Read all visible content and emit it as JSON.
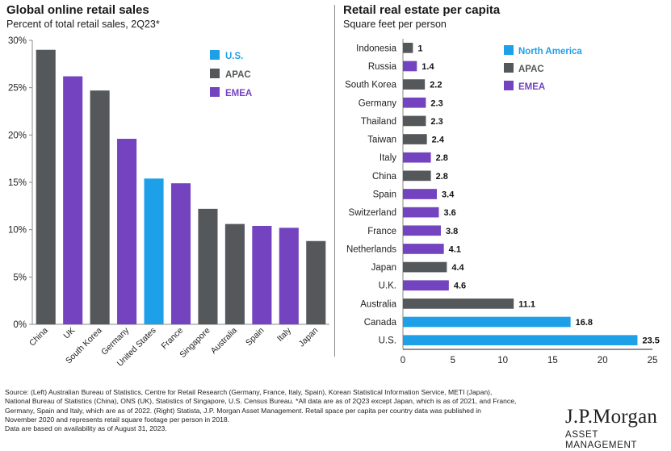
{
  "chart_data": [
    {
      "type": "bar",
      "title": "Global online retail sales",
      "subtitle": "Percent of total retail sales, 2Q23*",
      "categories": [
        "China",
        "UK",
        "South Korea",
        "Germany",
        "United States",
        "France",
        "Singapore",
        "Australia",
        "Spain",
        "Italy",
        "Japan"
      ],
      "values": [
        29.0,
        26.2,
        24.7,
        19.6,
        15.4,
        14.9,
        12.2,
        10.6,
        10.4,
        10.2,
        8.8
      ],
      "groups": [
        "APAC",
        "EMEA",
        "APAC",
        "EMEA",
        "U.S.",
        "EMEA",
        "APAC",
        "APAC",
        "EMEA",
        "EMEA",
        "APAC"
      ],
      "legend": [
        {
          "name": "U.S.",
          "color": "#1ea0e8"
        },
        {
          "name": "APAC",
          "color": "#54585a"
        },
        {
          "name": "EMEA",
          "color": "#7444c0"
        }
      ],
      "ylim": [
        0,
        30
      ],
      "yticks": [
        "0%",
        "5%",
        "10%",
        "15%",
        "20%",
        "25%",
        "30%"
      ],
      "grid": false,
      "legend_position": "top-right"
    },
    {
      "type": "bar",
      "orientation": "horizontal",
      "title": "Retail real estate per capita",
      "subtitle": "Square feet per person",
      "categories": [
        "Indonesia",
        "Russia",
        "South Korea",
        "Germany",
        "Thailand",
        "Taiwan",
        "Italy",
        "China",
        "Spain",
        "Switzerland",
        "France",
        "Netherlands",
        "Japan",
        "U.K.",
        "Australia",
        "Canada",
        "U.S."
      ],
      "values": [
        1,
        1.4,
        2.2,
        2.3,
        2.3,
        2.4,
        2.8,
        2.8,
        3.4,
        3.6,
        3.8,
        4.1,
        4.4,
        4.6,
        11.1,
        16.8,
        23.5
      ],
      "labels": [
        "1",
        "1.4",
        "2.2",
        "2.3",
        "2.3",
        "2.4",
        "2.8",
        "2.8",
        "3.4",
        "3.6",
        "3.8",
        "4.1",
        "4.4",
        "4.6",
        "11.1",
        "16.8",
        "23.5"
      ],
      "groups": [
        "APAC",
        "EMEA",
        "APAC",
        "EMEA",
        "APAC",
        "APAC",
        "EMEA",
        "APAC",
        "EMEA",
        "EMEA",
        "EMEA",
        "EMEA",
        "APAC",
        "EMEA",
        "APAC",
        "North America",
        "North America"
      ],
      "legend": [
        {
          "name": "North America",
          "color": "#1ea0e8"
        },
        {
          "name": "APAC",
          "color": "#54585a"
        },
        {
          "name": "EMEA",
          "color": "#7444c0"
        }
      ],
      "xlim": [
        0,
        25
      ],
      "xticks": [
        "0",
        "5",
        "10",
        "15",
        "20",
        "25"
      ],
      "grid": false,
      "legend_position": "top-right"
    }
  ],
  "source_lines": [
    "Source: (Left) Australian Bureau of Statistics, Centre for Retail Research (Germany, France, Italy, Spain), Korean Statistical Information Service, METI (Japan),",
    "National Bureau of Statistics (China), ONS (UK), Statistics of Singapore, U.S. Census Bureau. *All data are as of 2Q23 except Japan, which is as of 2021, and France,",
    "Germany, Spain and Italy, which are as of 2022. (Right) Statista, J.P. Morgan Asset Management. Retail space per capita per country data was published in",
    "November 2020 and represents retail square footage per person in 2018.",
    "Data are based on availability as of August 31, 2023."
  ],
  "logo": {
    "name": "J.P.Morgan",
    "sub": "ASSET MANAGEMENT"
  }
}
